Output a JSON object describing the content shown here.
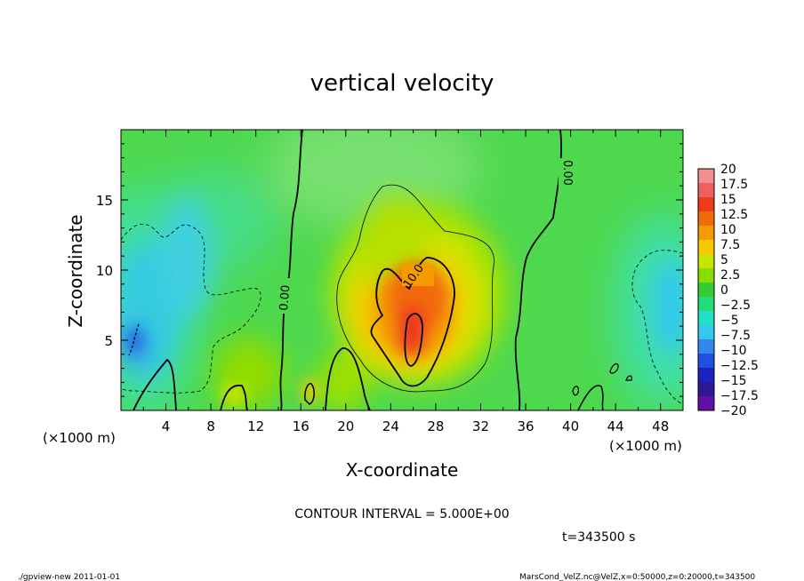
{
  "chart_data": {
    "type": "heatmap",
    "title": "vertical velocity",
    "xlabel": "X-coordinate",
    "ylabel": "Z-coordinate",
    "x_unit": "(×1000 m)",
    "z_unit": "(×1000 m)",
    "xlim": [
      0,
      50
    ],
    "ylim": [
      0,
      20
    ],
    "x_ticks": [
      "4",
      "8",
      "12",
      "16",
      "20",
      "24",
      "28",
      "32",
      "36",
      "40",
      "44",
      "48"
    ],
    "y_ticks": [
      "5",
      "10",
      "15"
    ],
    "colorbar_ticks": [
      "20",
      "17.5",
      "15",
      "12.5",
      "10",
      "7.5",
      "5",
      "2.5",
      "0",
      "−2.5",
      "−5",
      "−7.5",
      "−10",
      "−12.5",
      "−15",
      "−17.5",
      "−20"
    ],
    "colorbar_colors": [
      "#f09090",
      "#f06060",
      "#ee3b1c",
      "#f26b0b",
      "#f59a00",
      "#f5c800",
      "#c8e400",
      "#88dd00",
      "#33cc33",
      "#22dd77",
      "#22e0c8",
      "#33c8f0",
      "#3388f0",
      "#2050e0",
      "#1a22c0",
      "#301890",
      "#6010a8"
    ],
    "contour_labels": [
      "0.00",
      "10.0",
      "0.00"
    ],
    "contour_interval": "CONTOUR INTERVAL = 5.000E+00",
    "time_label": "t=343500 s",
    "features": [
      {
        "kind": "updraft",
        "x": 25.5,
        "z": 6,
        "value": 14
      },
      {
        "kind": "downdraft",
        "x": 1.5,
        "z": 5,
        "value": -8
      },
      {
        "kind": "downdraft",
        "x": 48.5,
        "z": 7,
        "value": -6
      }
    ]
  },
  "footer": {
    "left": "./gpview-new   2011-01-01",
    "right": "MarsCond_VelZ.nc@VelZ,x=0:50000,z=0:20000,t=343500"
  }
}
